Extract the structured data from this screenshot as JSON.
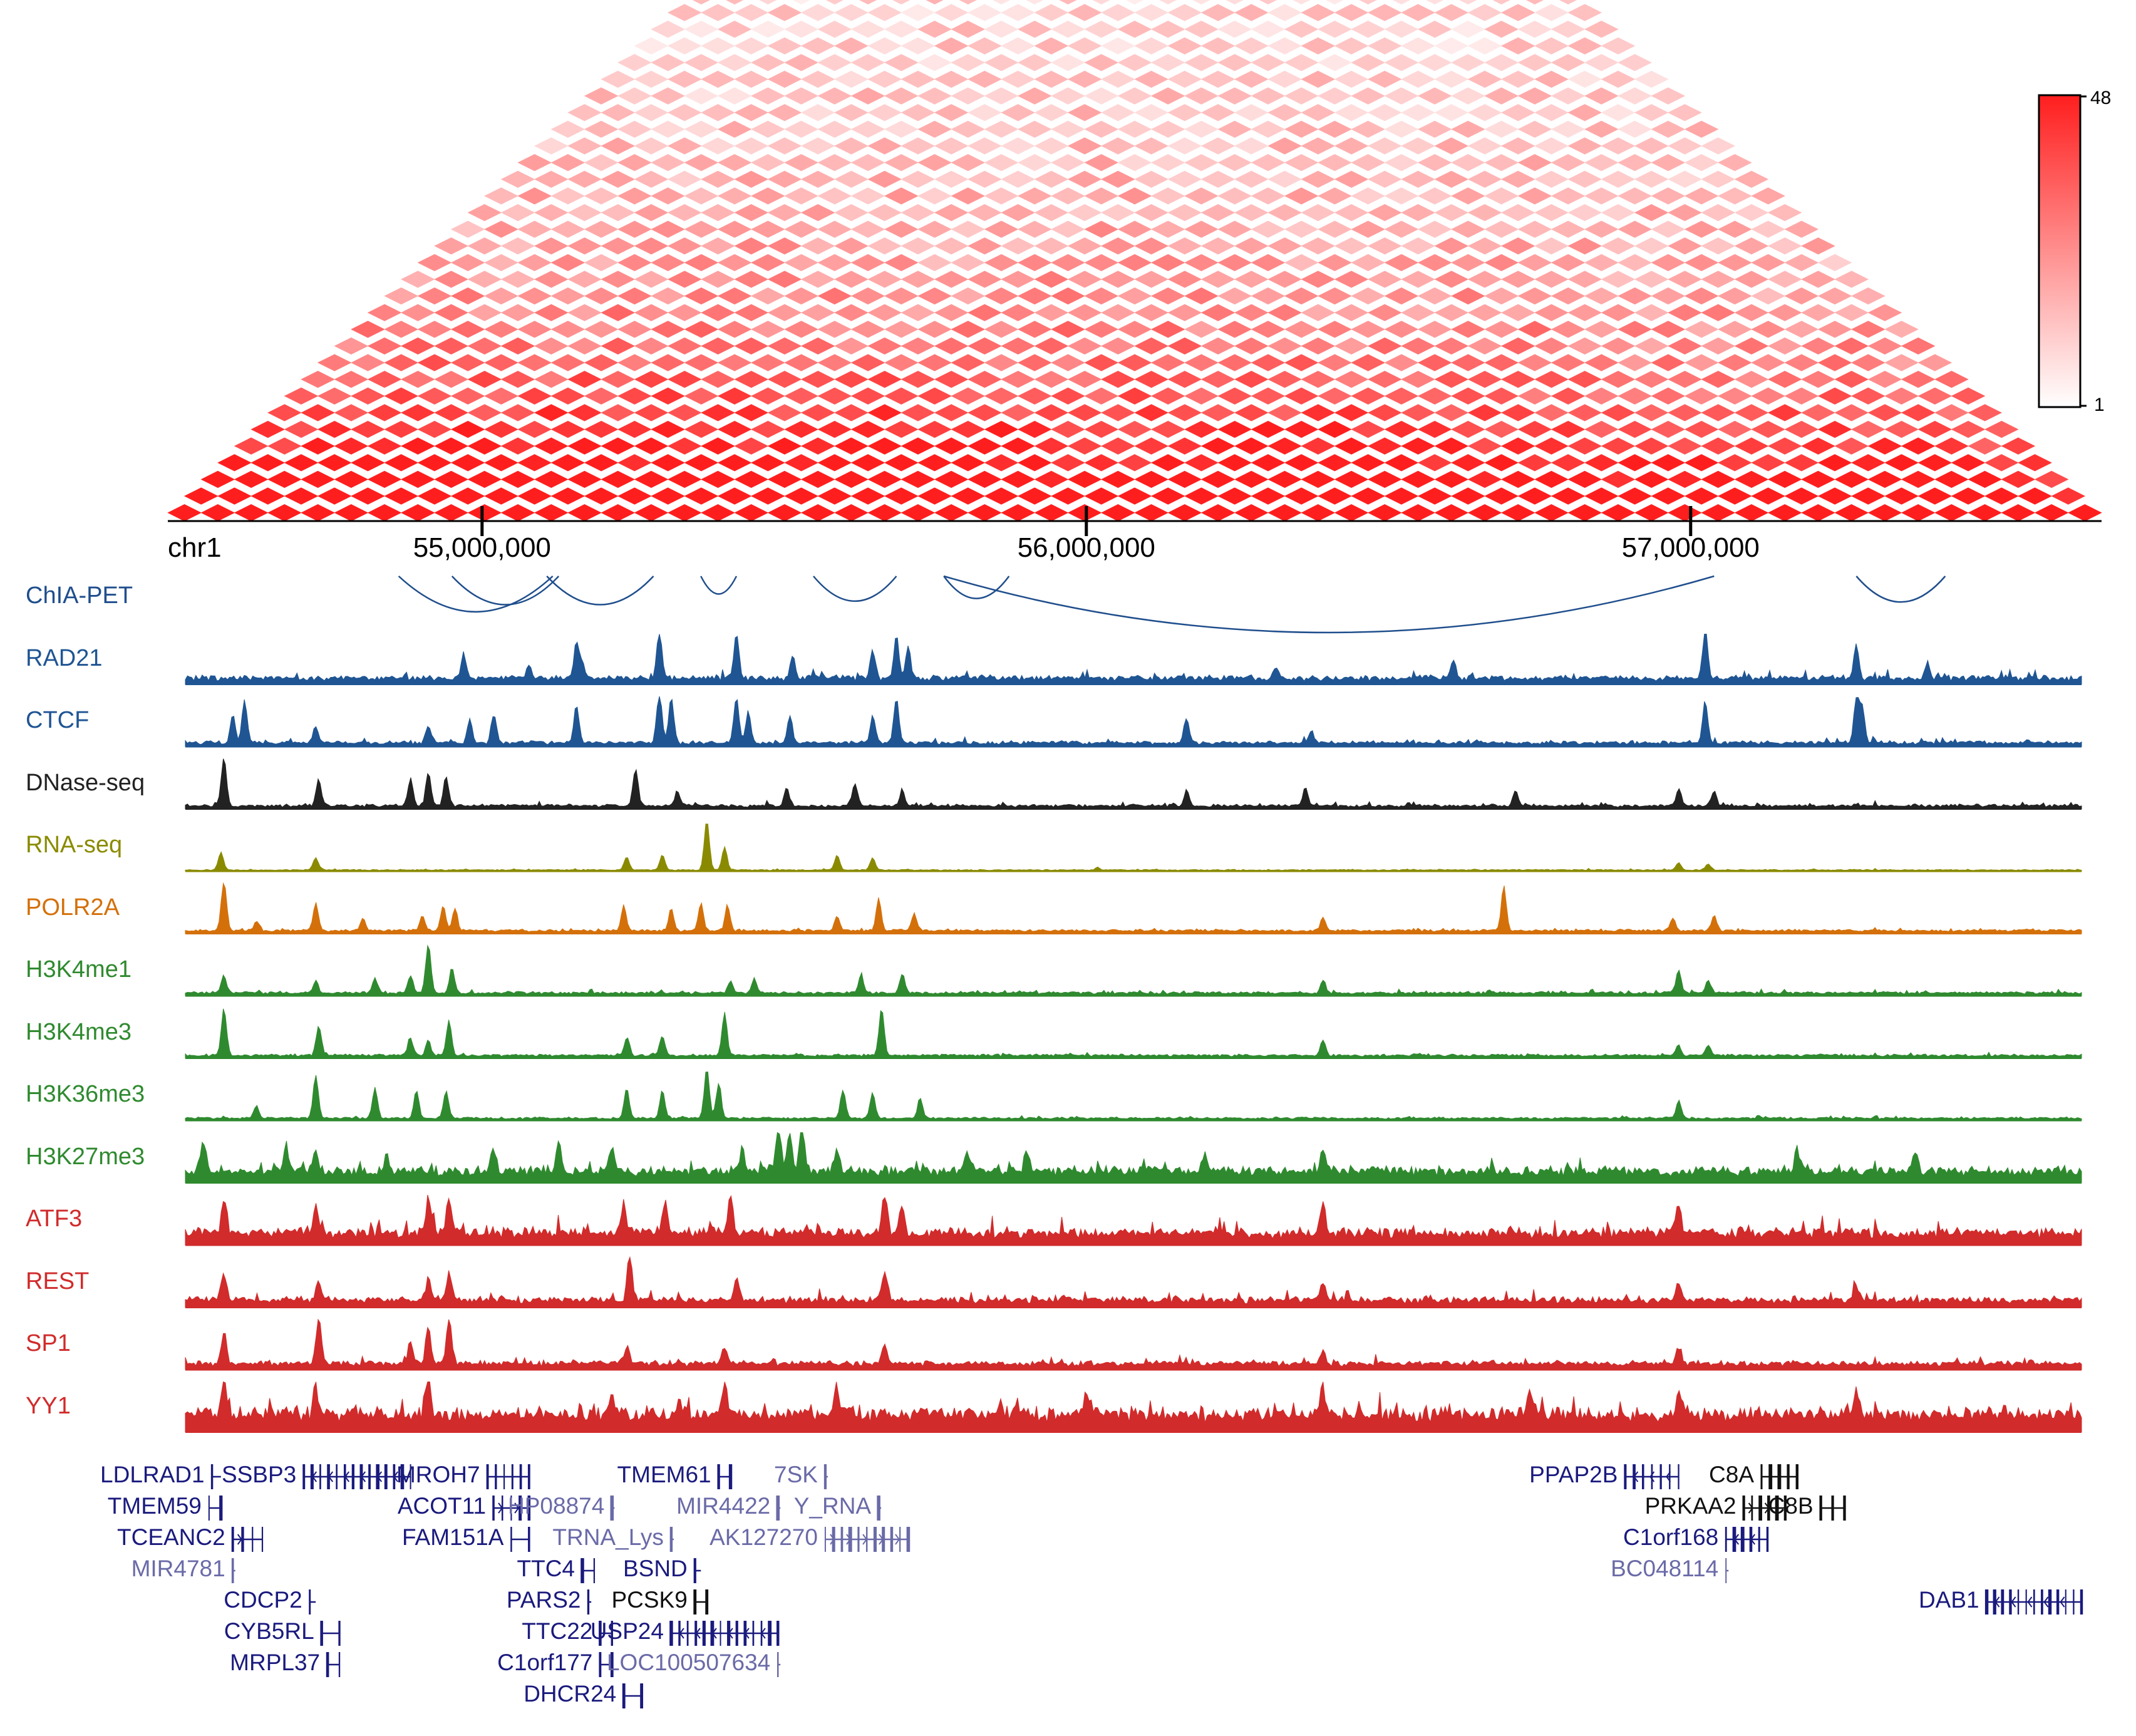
{
  "heatmap": {
    "colorbar": {
      "min_label": "1",
      "max_label": "48",
      "low_color": "#ffffff",
      "high_color": "#ff1e1e"
    },
    "bins": 58,
    "hot_centers": [
      1,
      8,
      11,
      20,
      22,
      33,
      35,
      46,
      53
    ]
  },
  "axis": {
    "chrom": "chr1",
    "start": 54480000,
    "end": 57680000,
    "ticks": [
      {
        "value": 55000000,
        "label": "55,000,000"
      },
      {
        "value": 56000000,
        "label": "56,000,000"
      },
      {
        "value": 57000000,
        "label": "57,000,000"
      }
    ]
  },
  "tracks": [
    {
      "id": "chia-pet",
      "label": "ChIA-PET",
      "color": "#1f4e8c",
      "type": "arcs"
    },
    {
      "id": "rad21",
      "label": "RAD21",
      "color": "#1f5593",
      "type": "signal",
      "baseline": 0.1,
      "noise": 0.18,
      "peaks": [
        [
          55060,
          0.3
        ],
        [
          54950,
          0.45
        ],
        [
          55150,
          0.3
        ],
        [
          55140,
          0.75
        ],
        [
          55280,
          1.0
        ],
        [
          55410,
          0.92
        ],
        [
          55505,
          0.45
        ],
        [
          55640,
          0.55
        ],
        [
          55680,
          0.85
        ],
        [
          55700,
          0.6
        ],
        [
          56320,
          0.2
        ],
        [
          56620,
          0.35
        ],
        [
          57045,
          1.0
        ],
        [
          57300,
          0.7
        ],
        [
          57420,
          0.25
        ]
      ]
    },
    {
      "id": "ctcf",
      "label": "CTCF",
      "color": "#1f5593",
      "type": "signal",
      "baseline": 0.06,
      "noise": 0.12,
      "peaks": [
        [
          54560,
          0.55
        ],
        [
          54580,
          0.85
        ],
        [
          54700,
          0.35
        ],
        [
          54890,
          0.35
        ],
        [
          54960,
          0.45
        ],
        [
          55000,
          0.55
        ],
        [
          55140,
          0.75
        ],
        [
          55280,
          1.0
        ],
        [
          55300,
          0.9
        ],
        [
          55410,
          0.92
        ],
        [
          55430,
          0.6
        ],
        [
          55500,
          0.55
        ],
        [
          55640,
          0.55
        ],
        [
          55680,
          0.9
        ],
        [
          56170,
          0.5
        ],
        [
          56380,
          0.25
        ],
        [
          57045,
          0.85
        ],
        [
          57300,
          0.9
        ],
        [
          57310,
          0.7
        ]
      ]
    },
    {
      "id": "dnase",
      "label": "DNase-seq",
      "color": "#222222",
      "type": "signal",
      "baseline": 0.05,
      "noise": 0.1,
      "peaks": [
        [
          54545,
          1.0
        ],
        [
          54705,
          0.55
        ],
        [
          54860,
          0.55
        ],
        [
          54890,
          0.65
        ],
        [
          54920,
          0.6
        ],
        [
          55240,
          0.75
        ],
        [
          55310,
          0.3
        ],
        [
          55495,
          0.35
        ],
        [
          55610,
          0.45
        ],
        [
          55690,
          0.3
        ],
        [
          56170,
          0.3
        ],
        [
          56370,
          0.35
        ],
        [
          56725,
          0.3
        ],
        [
          57000,
          0.35
        ],
        [
          57060,
          0.3
        ]
      ]
    },
    {
      "id": "rnaseq",
      "label": "RNA-seq",
      "color": "#8a8a00",
      "type": "signal",
      "baseline": 0.02,
      "noise": 0.03,
      "peaks": [
        [
          54540,
          0.35
        ],
        [
          54700,
          0.25
        ],
        [
          55225,
          0.25
        ],
        [
          55285,
          0.3
        ],
        [
          55360,
          1.0
        ],
        [
          55390,
          0.45
        ],
        [
          55580,
          0.3
        ],
        [
          55640,
          0.25
        ],
        [
          56020,
          0.05
        ],
        [
          57000,
          0.15
        ],
        [
          57050,
          0.12
        ]
      ]
    },
    {
      "id": "polr2a",
      "label": "POLR2A",
      "color": "#d4700a",
      "type": "signal",
      "baseline": 0.05,
      "noise": 0.06,
      "peaks": [
        [
          54545,
          1.0
        ],
        [
          54600,
          0.2
        ],
        [
          54700,
          0.55
        ],
        [
          54780,
          0.25
        ],
        [
          54880,
          0.3
        ],
        [
          54915,
          0.5
        ],
        [
          54935,
          0.45
        ],
        [
          55220,
          0.5
        ],
        [
          55300,
          0.45
        ],
        [
          55350,
          0.55
        ],
        [
          55395,
          0.5
        ],
        [
          55580,
          0.3
        ],
        [
          55650,
          0.35
        ],
        [
          55710,
          0.35
        ],
        [
          55650,
          0.3
        ],
        [
          56400,
          0.25
        ],
        [
          56705,
          0.9
        ],
        [
          56990,
          0.25
        ],
        [
          57060,
          0.3
        ]
      ]
    },
    {
      "id": "h3k4me1",
      "label": "H3K4me1",
      "color": "#2f8a2f",
      "type": "signal",
      "baseline": 0.05,
      "noise": 0.07,
      "peaks": [
        [
          54545,
          0.35
        ],
        [
          54700,
          0.25
        ],
        [
          54800,
          0.3
        ],
        [
          54860,
          0.35
        ],
        [
          54890,
          1.0
        ],
        [
          54930,
          0.5
        ],
        [
          55400,
          0.25
        ],
        [
          55440,
          0.3
        ],
        [
          55620,
          0.35
        ],
        [
          55690,
          0.4
        ],
        [
          56400,
          0.25
        ],
        [
          57000,
          0.45
        ],
        [
          57050,
          0.25
        ]
      ]
    },
    {
      "id": "h3k4me3",
      "label": "H3K4me3",
      "color": "#2f8a2f",
      "type": "signal",
      "baseline": 0.05,
      "noise": 0.05,
      "peaks": [
        [
          54545,
          0.95
        ],
        [
          54705,
          0.6
        ],
        [
          54860,
          0.35
        ],
        [
          54890,
          0.3
        ],
        [
          54925,
          0.7
        ],
        [
          55225,
          0.35
        ],
        [
          55285,
          0.4
        ],
        [
          55390,
          0.85
        ],
        [
          55655,
          0.95
        ],
        [
          56400,
          0.3
        ],
        [
          57000,
          0.2
        ],
        [
          57050,
          0.2
        ]
      ]
    },
    {
      "id": "h3k36me3",
      "label": "H3K36me3",
      "color": "#2f8a2f",
      "type": "signal",
      "baseline": 0.04,
      "noise": 0.05,
      "peaks": [
        [
          54600,
          0.25
        ],
        [
          54700,
          0.85
        ],
        [
          54800,
          0.6
        ],
        [
          54870,
          0.55
        ],
        [
          54920,
          0.55
        ],
        [
          55225,
          0.6
        ],
        [
          55285,
          0.55
        ],
        [
          55360,
          1.0
        ],
        [
          55380,
          0.7
        ],
        [
          55590,
          0.55
        ],
        [
          55640,
          0.5
        ],
        [
          55720,
          0.4
        ],
        [
          57000,
          0.35
        ]
      ]
    },
    {
      "id": "h3k27me3",
      "label": "H3K27me3",
      "color": "#2f8a2f",
      "type": "signal",
      "baseline": 0.2,
      "noise": 0.25,
      "peaks": [
        [
          54510,
          0.65
        ],
        [
          54650,
          0.5
        ],
        [
          54700,
          0.45
        ],
        [
          54820,
          0.4
        ],
        [
          55000,
          0.45
        ],
        [
          55110,
          0.55
        ],
        [
          55200,
          0.45
        ],
        [
          55420,
          0.5
        ],
        [
          55480,
          0.9
        ],
        [
          55500,
          0.75
        ],
        [
          55520,
          1.0
        ],
        [
          55580,
          0.4
        ],
        [
          55800,
          0.35
        ],
        [
          55900,
          0.4
        ],
        [
          56200,
          0.35
        ],
        [
          56400,
          0.4
        ],
        [
          57200,
          0.45
        ],
        [
          57400,
          0.4
        ]
      ]
    },
    {
      "id": "atf3",
      "label": "ATF3",
      "color": "#d12b2b",
      "type": "signal",
      "baseline": 0.2,
      "noise": 0.35,
      "peaks": [
        [
          54545,
          0.7
        ],
        [
          54700,
          0.55
        ],
        [
          54890,
          0.7
        ],
        [
          54925,
          0.7
        ],
        [
          55220,
          0.6
        ],
        [
          55290,
          0.6
        ],
        [
          55400,
          0.85
        ],
        [
          55660,
          0.8
        ],
        [
          55690,
          0.5
        ],
        [
          56400,
          0.6
        ],
        [
          57000,
          0.6
        ]
      ]
    },
    {
      "id": "rest",
      "label": "REST",
      "color": "#d12b2b",
      "type": "signal",
      "baseline": 0.12,
      "noise": 0.22,
      "peaks": [
        [
          54545,
          0.55
        ],
        [
          54705,
          0.4
        ],
        [
          54890,
          0.45
        ],
        [
          54925,
          0.55
        ],
        [
          55230,
          0.95
        ],
        [
          55410,
          0.45
        ],
        [
          55660,
          0.6
        ],
        [
          56400,
          0.35
        ],
        [
          57000,
          0.35
        ],
        [
          57300,
          0.3
        ]
      ]
    },
    {
      "id": "sp1",
      "label": "SP1",
      "color": "#d12b2b",
      "type": "signal",
      "baseline": 0.1,
      "noise": 0.18,
      "peaks": [
        [
          54545,
          0.65
        ],
        [
          54705,
          0.95
        ],
        [
          54860,
          0.45
        ],
        [
          54890,
          0.75
        ],
        [
          54925,
          0.9
        ],
        [
          55225,
          0.35
        ],
        [
          55390,
          0.35
        ],
        [
          55660,
          0.4
        ],
        [
          56400,
          0.25
        ],
        [
          57000,
          0.3
        ]
      ]
    },
    {
      "id": "yy1",
      "label": "YY1",
      "color": "#d12b2b",
      "type": "signal",
      "baseline": 0.3,
      "noise": 0.4,
      "peaks": [
        [
          54545,
          0.7
        ],
        [
          54700,
          0.6
        ],
        [
          54890,
          0.7
        ],
        [
          55200,
          0.5
        ],
        [
          55390,
          0.75
        ],
        [
          55580,
          0.55
        ],
        [
          56000,
          0.5
        ],
        [
          56400,
          0.6
        ],
        [
          56750,
          0.55
        ],
        [
          57000,
          0.5
        ],
        [
          57300,
          0.5
        ]
      ]
    }
  ],
  "chia_pet_arcs": [
    [
      54840,
      55100
    ],
    [
      54930,
      55110
    ],
    [
      55090,
      55270
    ],
    [
      55350,
      55410
    ],
    [
      55540,
      55680
    ],
    [
      55760,
      55870
    ],
    [
      55760,
      57060
    ],
    [
      57300,
      57450
    ]
  ],
  "genes": [
    {
      "name": "LDLRAD1",
      "color": "#1a1a7e",
      "row": 0,
      "start": 54525,
      "end": 54540,
      "strand": "",
      "side": "left"
    },
    {
      "name": "SSBP3",
      "color": "#1a1a7e",
      "row": 0,
      "start": 54680,
      "end": 54860,
      "strand": "-",
      "side": "left"
    },
    {
      "name": "MROH7",
      "color": "#1a1a7e",
      "row": 0,
      "start": 54990,
      "end": 55060,
      "strand": "",
      "side": "left"
    },
    {
      "name": "TMEM61",
      "color": "#1a1a7e",
      "row": 0,
      "start": 55380,
      "end": 55400,
      "strand": "",
      "side": "left"
    },
    {
      "name": "7SK",
      "color": "#6a6aa8",
      "row": 0,
      "start": 55560,
      "end": 55562,
      "strand": "",
      "side": "left"
    },
    {
      "name": "PPAP2B",
      "color": "#1a1a7e",
      "row": 0,
      "start": 56910,
      "end": 57000,
      "strand": "-",
      "side": "left"
    },
    {
      "name": "C8A",
      "color": "#111111",
      "row": 0,
      "start": 57140,
      "end": 57200,
      "strand": "",
      "side": "left"
    },
    {
      "name": "TMEM59",
      "color": "#1a1a7e",
      "row": 1,
      "start": 54520,
      "end": 54540,
      "strand": "",
      "side": "left"
    },
    {
      "name": "ACOT11",
      "color": "#1a1a7e",
      "row": 1,
      "start": 55000,
      "end": 55060,
      "strand": "+",
      "side": "left"
    },
    {
      "name": "HP08874",
      "color": "#6a6aa8",
      "row": 1,
      "start": 55200,
      "end": 55202,
      "strand": "",
      "side": "left"
    },
    {
      "name": "MIR4422",
      "color": "#6a6aa8",
      "row": 1,
      "start": 55480,
      "end": 55482,
      "strand": "",
      "side": "left"
    },
    {
      "name": "Y_RNA",
      "color": "#6a6aa8",
      "row": 1,
      "start": 55650,
      "end": 55652,
      "strand": "",
      "side": "left"
    },
    {
      "name": "PRKAA2",
      "color": "#111111",
      "row": 1,
      "start": 57110,
      "end": 57180,
      "strand": "+",
      "side": "left"
    },
    {
      "name": "C8B",
      "color": "#111111",
      "row": 1,
      "start": 57240,
      "end": 57280,
      "strand": "",
      "side": "left"
    },
    {
      "name": "TCEANC2",
      "color": "#1a1a7e",
      "row": 2,
      "start": 54560,
      "end": 54610,
      "strand": "+",
      "side": "left"
    },
    {
      "name": "FAM151A",
      "color": "#1a1a7e",
      "row": 2,
      "start": 55030,
      "end": 55060,
      "strand": "",
      "side": "left"
    },
    {
      "name": "TRNA_Lys",
      "color": "#6a6aa8",
      "row": 2,
      "start": 55300,
      "end": 55302,
      "strand": "",
      "side": "left"
    },
    {
      "name": "AK127270",
      "color": "#6a6aa8",
      "row": 2,
      "start": 55560,
      "end": 55700,
      "strand": "+",
      "side": "left"
    },
    {
      "name": "C1orf168",
      "color": "#1a1a7e",
      "row": 2,
      "start": 57080,
      "end": 57150,
      "strand": "-",
      "side": "left"
    },
    {
      "name": "MIR4781",
      "color": "#6a6aa8",
      "row": 3,
      "start": 54560,
      "end": 54562,
      "strand": "",
      "side": "left"
    },
    {
      "name": "TTC4",
      "color": "#1a1a7e",
      "row": 3,
      "start": 55150,
      "end": 55170,
      "strand": "",
      "side": "left"
    },
    {
      "name": "BSND",
      "color": "#1a1a7e",
      "row": 3,
      "start": 55340,
      "end": 55350,
      "strand": "",
      "side": "left"
    },
    {
      "name": "BC048114",
      "color": "#6a6aa8",
      "row": 3,
      "start": 57080,
      "end": 57082,
      "strand": "",
      "side": "left"
    },
    {
      "name": "CDCP2",
      "color": "#1a1a7e",
      "row": 4,
      "start": 54690,
      "end": 54700,
      "strand": "",
      "side": "left"
    },
    {
      "name": "PARS2",
      "color": "#1a1a7e",
      "row": 4,
      "start": 55160,
      "end": 55165,
      "strand": "",
      "side": "left"
    },
    {
      "name": "PCSK9",
      "color": "#111111",
      "row": 4,
      "start": 55340,
      "end": 55360,
      "strand": "",
      "side": "left"
    },
    {
      "name": "DAB1",
      "color": "#1a1a7e",
      "row": 4,
      "start": 57520,
      "end": 57680,
      "strand": "-",
      "side": "left"
    },
    {
      "name": "CYB5RL",
      "color": "#1a1a7e",
      "row": 5,
      "start": 54710,
      "end": 54740,
      "strand": "",
      "side": "left"
    },
    {
      "name": "TTC22",
      "color": "#1a1a7e",
      "row": 5,
      "start": 55180,
      "end": 55200,
      "strand": "",
      "side": "left"
    },
    {
      "name": "USP24",
      "color": "#1a1a7e",
      "row": 5,
      "start": 55300,
      "end": 55480,
      "strand": "-",
      "side": "left"
    },
    {
      "name": "MRPL37",
      "color": "#1a1a7e",
      "row": 6,
      "start": 54720,
      "end": 54740,
      "strand": "",
      "side": "left"
    },
    {
      "name": "C1orf177",
      "color": "#1a1a7e",
      "row": 6,
      "start": 55180,
      "end": 55200,
      "strand": "",
      "side": "left"
    },
    {
      "name": "LOC100507634",
      "color": "#6a6aa8",
      "row": 6,
      "start": 55480,
      "end": 55482,
      "strand": "",
      "side": "left"
    },
    {
      "name": "DHCR24",
      "color": "#1a1a7e",
      "row": 7,
      "start": 55220,
      "end": 55250,
      "strand": "",
      "side": "left"
    }
  ]
}
